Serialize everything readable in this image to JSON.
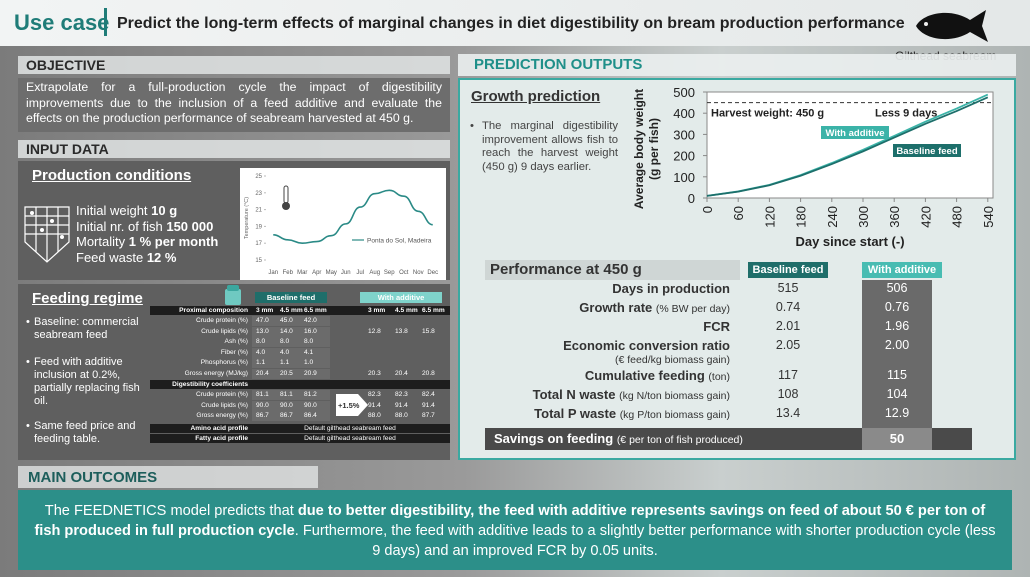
{
  "header": {
    "label": "Use case",
    "title": "Predict the long-term effects of marginal changes in diet digestibility on bream production performance",
    "species": "Gilthead seabream"
  },
  "objective": {
    "heading": "OBJECTIVE",
    "text": "Extrapolate for a full-production cycle the impact of digestibility improvements due to the inclusion of a feed additive and evaluate the effects on the production performance of seabream harvested at 450 g."
  },
  "input_data": {
    "heading": "INPUT DATA",
    "production_conditions": {
      "title": "Production conditions",
      "items": [
        {
          "label": "Initial weight",
          "value": "10 g"
        },
        {
          "label": "Initial nr. of fish",
          "value": "150 000"
        },
        {
          "label": "Mortality",
          "value": "1 % per month"
        },
        {
          "label": "Feed waste",
          "value": "12 %"
        }
      ]
    },
    "temperature_chart": {
      "type": "line",
      "y_label": "Temperature (°C)",
      "categories": [
        "Jan",
        "Feb",
        "Mar",
        "Apr",
        "May",
        "Jun",
        "Jul",
        "Aug",
        "Sep",
        "Oct",
        "Nov",
        "Dec"
      ],
      "series": [
        {
          "name": "Ponta do Sol, Madeira",
          "color": "#2a8a86",
          "values": [
            18,
            17.4,
            17,
            17.2,
            17.9,
            19.3,
            21.3,
            22.9,
            23.3,
            22.6,
            20.8,
            19.2
          ]
        }
      ],
      "ylim": [
        15,
        25
      ],
      "yticks": [
        15,
        17,
        19,
        21,
        23,
        25
      ]
    },
    "feeding_regime": {
      "title": "Feeding regime",
      "bullets": [
        "Baseline: commercial seabream feed",
        "Feed with additive inclusion at 0.2%, partially replacing fish oil.",
        "Same feed price and feeding table."
      ]
    },
    "feed_table": {
      "columns": [
        "Baseline feed",
        "With additive"
      ],
      "sizes": [
        "3 mm",
        "4.5 mm",
        "6.5 mm"
      ],
      "increase": "+1.5%",
      "sections": [
        {
          "title": "Proximal composition",
          "rows": [
            {
              "label": "Crude protein (%)",
              "baseline": [
                "47.0",
                "45.0",
                "42.0"
              ],
              "additive": []
            },
            {
              "label": "Crude lipids (%)",
              "baseline": [
                "13.0",
                "14.0",
                "16.0"
              ],
              "additive": [
                "12.8",
                "13.8",
                "15.8"
              ]
            },
            {
              "label": "Ash (%)",
              "baseline": [
                "8.0",
                "8.0",
                "8.0"
              ],
              "additive": []
            },
            {
              "label": "Fiber (%)",
              "baseline": [
                "4.0",
                "4.0",
                "4.1"
              ],
              "additive": []
            },
            {
              "label": "Phosphorus (%)",
              "baseline": [
                "1.1",
                "1.1",
                "1.0"
              ],
              "additive": []
            },
            {
              "label": "Gross energy (MJ/kg)",
              "baseline": [
                "20.4",
                "20.5",
                "20.9"
              ],
              "additive": [
                "20.3",
                "20.4",
                "20.8"
              ]
            }
          ]
        },
        {
          "title": "Digestibility coefficients",
          "rows": [
            {
              "label": "Crude protein (%)",
              "baseline": [
                "81.1",
                "81.1",
                "81.2"
              ],
              "additive": [
                "82.3",
                "82.3",
                "82.4"
              ]
            },
            {
              "label": "Crude lipids (%)",
              "baseline": [
                "90.0",
                "90.0",
                "90.0"
              ],
              "additive": [
                "91.4",
                "91.4",
                "91.4"
              ]
            },
            {
              "label": "Gross energy (%)",
              "baseline": [
                "86.7",
                "86.7",
                "86.4"
              ],
              "additive": [
                "88.0",
                "88.0",
                "87.7"
              ]
            }
          ]
        }
      ],
      "profiles": [
        {
          "label": "Amino acid profile",
          "value": "Default gilthead seabream feed"
        },
        {
          "label": "Fatty acid profile",
          "value": "Default gilthead seabream feed"
        }
      ]
    }
  },
  "prediction": {
    "heading": "PREDICTION OUTPUTS",
    "growth": {
      "title": "Growth prediction",
      "text": "The marginal digestibility improvement allows fish to reach the harvest weight (450 g) 9 days earlier.",
      "chart": {
        "type": "line",
        "y_label": "Average body weight",
        "y_label_unit": "(g per fish)",
        "x_label": "Day since start (-)",
        "x": [
          0,
          60,
          120,
          180,
          240,
          300,
          360,
          420,
          480,
          540
        ],
        "series": [
          {
            "name": "With additive",
            "color": "#3bb3a8",
            "values": [
              10,
              31,
              62,
              108,
              165,
              227,
              293,
              360,
              422,
              488
            ]
          },
          {
            "name": "Baseline feed",
            "color": "#1d6f6b",
            "values": [
              10,
              30,
              60,
              105,
              160,
              220,
              285,
              350,
              410,
              475
            ]
          }
        ],
        "xlim": [
          0,
          550
        ],
        "ylim": [
          0,
          500
        ],
        "xticks": [
          0,
          60,
          120,
          180,
          240,
          300,
          360,
          420,
          480,
          540
        ],
        "yticks": [
          0,
          100,
          200,
          300,
          400,
          500
        ],
        "harvest": {
          "value": 450,
          "label": "Harvest weight: 450 g"
        },
        "annotation": "Less 9 days"
      }
    },
    "performance": {
      "title": "Performance at 450 g",
      "columns": [
        "Baseline feed",
        "With additive"
      ],
      "rows": [
        {
          "label": "Days in production",
          "baseline": "515",
          "additive": "506"
        },
        {
          "label": "Growth rate",
          "unit": "(% BW per day)",
          "baseline": "0.74",
          "additive": "0.76"
        },
        {
          "label": "FCR",
          "baseline": "2.01",
          "additive": "1.96"
        },
        {
          "label": "Economic conversion ratio",
          "unit": "(€ feed/kg biomass gain)",
          "baseline": "2.05",
          "additive": "2.00"
        },
        {
          "label": "Cumulative feeding",
          "unit": "(ton)",
          "baseline": "117",
          "additive": "115"
        },
        {
          "label": "Total N waste",
          "unit": "(kg N/ton biomass gain)",
          "baseline": "108",
          "additive": "104"
        },
        {
          "label": "Total P waste",
          "unit": "(kg P/ton biomass gain)",
          "baseline": "13.4",
          "additive": "12.9"
        }
      ],
      "savings": {
        "label": "Savings on feeding",
        "unit": "(€ per ton of fish produced)",
        "value": "50"
      }
    }
  },
  "outcomes": {
    "heading": "MAIN OUTCOMES",
    "lead": "The FEEDNETICS model predicts that",
    "highlight": "due to better digestibility, the feed with additive represents savings on feed of about 50 € per ton of fish produced in full production cycle",
    "rest": ". Furthermore, the feed with additive leads to a slightly better performance with shorter production cycle (less 9 days) and an improved FCR by 0.05 units."
  }
}
